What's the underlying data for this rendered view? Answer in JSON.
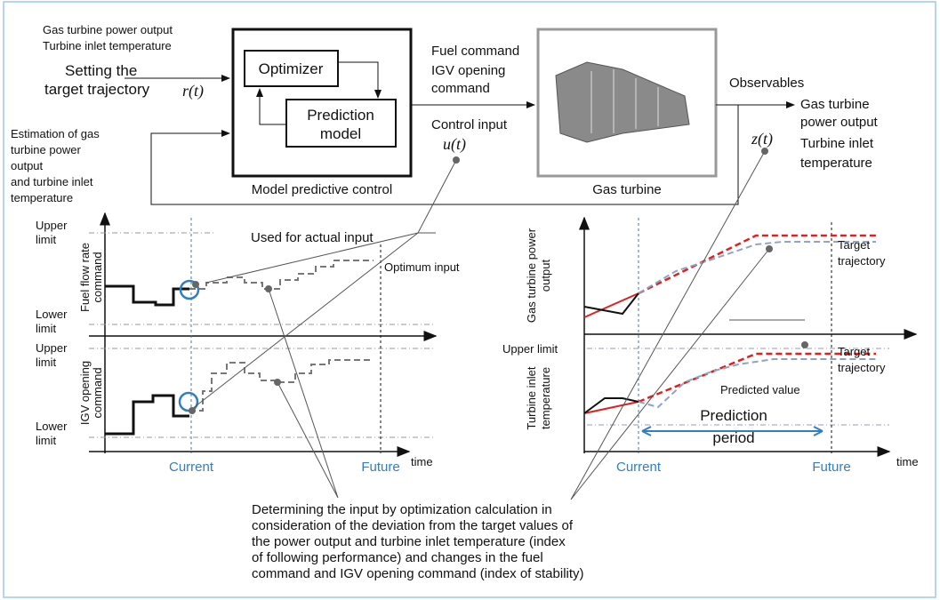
{
  "inputs": {
    "target_lines": [
      "Gas turbine power output",
      "Turbine inlet temperature"
    ],
    "setting_lines": [
      "Setting the",
      "target trajectory"
    ],
    "r": "r(t)",
    "estimation_lines": [
      "Estimation of gas",
      "turbine power",
      "output",
      "and turbine inlet",
      "temperature"
    ]
  },
  "mpc": {
    "optimizer": "Optimizer",
    "prediction_model": [
      "Prediction",
      "model"
    ],
    "label": "Model predictive control"
  },
  "commands": {
    "lines": [
      "Fuel command",
      "IGV opening",
      "command"
    ],
    "control_input": "Control input",
    "u": "u(t)"
  },
  "gas_turbine": {
    "label": "Gas turbine"
  },
  "observables": {
    "label": "Observables",
    "power_lines": [
      "Gas turbine",
      "power output"
    ],
    "z": "z(t)",
    "temp_lines": [
      "Turbine inlet",
      "temperature"
    ]
  },
  "left_chart": {
    "upper_limit_1": [
      "Upper",
      "limit"
    ],
    "fuel_axis": [
      "Fuel flow rate",
      "command"
    ],
    "lower_limit_1": [
      "Lower",
      "limit"
    ],
    "upper_limit_2": [
      "Upper",
      "limit"
    ],
    "igv_axis": [
      "IGV opening",
      "command"
    ],
    "lower_limit_2": [
      "Lower",
      "limit"
    ],
    "used_for_actual_input": "Used for actual input",
    "optimum_input": "Optimum input",
    "current": "Current",
    "future": "Future",
    "time": "time"
  },
  "right_chart": {
    "power_axis": [
      "Gas turbine power",
      "output"
    ],
    "target_1": [
      "Target",
      "trajectory"
    ],
    "upper_limit": "Upper limit",
    "temp_axis": [
      "Turbine inlet",
      "temperature"
    ],
    "target_2": [
      "Target",
      "trajectory"
    ],
    "predicted_value": "Predicted value",
    "prediction_period": [
      "Prediction",
      "period"
    ],
    "current": "Current",
    "future": "Future",
    "time": "time"
  },
  "note_lines": [
    "Determining the input by optimization calculation in",
    "consideration of the deviation from the target values of",
    "the power output and turbine inlet temperature (index",
    "of following performance) and changes in the fuel",
    "command and IGV opening command (index of stability)"
  ]
}
